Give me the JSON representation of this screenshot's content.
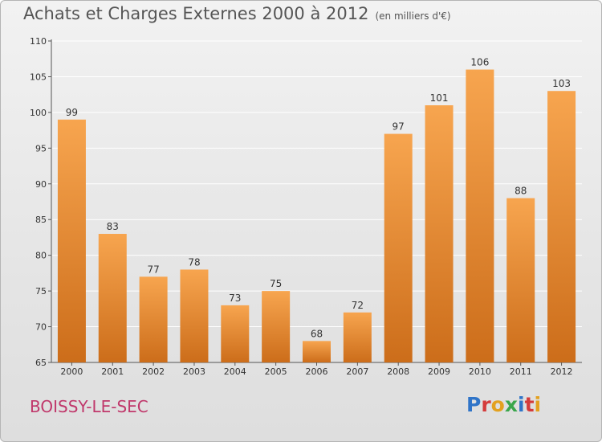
{
  "header": {
    "title": "Achats et Charges Externes 2000 à 2012",
    "unit": "(en milliers d'€)"
  },
  "footer": {
    "commune": "BOISSY-LE-SEC",
    "logo_text": "Proxiti",
    "logo_colors": [
      "#2f74c8",
      "#d43b3b",
      "#e3a11f",
      "#3aa64b",
      "#2f74c8",
      "#d43b3b",
      "#e3a11f"
    ]
  },
  "colors": {
    "bar_light": "#f7a54f",
    "bar_dark": "#cc6d1a",
    "grid": "#ffffff",
    "commune_text": "#c0386b"
  },
  "chart_data": {
    "type": "bar",
    "title": "Achats et Charges Externes 2000 à 2012",
    "subtitle": "(en milliers d'€)",
    "xlabel": "",
    "ylabel": "",
    "categories": [
      "2000",
      "2001",
      "2002",
      "2003",
      "2004",
      "2005",
      "2006",
      "2007",
      "2008",
      "2009",
      "2010",
      "2011",
      "2012"
    ],
    "values": [
      99,
      83,
      77,
      78,
      73,
      75,
      68,
      72,
      97,
      101,
      106,
      88,
      103
    ],
    "ylim": [
      65,
      110
    ],
    "yticks": [
      65,
      70,
      75,
      80,
      85,
      90,
      95,
      100,
      105,
      110
    ],
    "grid": true,
    "legend": "none"
  }
}
